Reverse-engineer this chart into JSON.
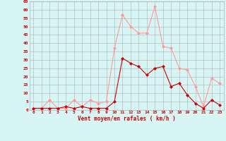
{
  "hours": [
    0,
    1,
    2,
    3,
    4,
    5,
    6,
    7,
    8,
    9,
    10,
    11,
    12,
    13,
    14,
    15,
    16,
    17,
    18,
    19,
    20,
    21,
    22,
    23
  ],
  "vent_moyen": [
    1,
    1,
    1,
    1,
    2,
    1,
    2,
    1,
    1,
    1,
    5,
    31,
    28,
    26,
    21,
    25,
    26,
    14,
    16,
    9,
    4,
    1,
    6,
    3
  ],
  "rafales": [
    1,
    1,
    6,
    1,
    1,
    6,
    2,
    6,
    4,
    5,
    37,
    57,
    50,
    46,
    46,
    62,
    38,
    37,
    25,
    24,
    14,
    2,
    19,
    16
  ],
  "color_moyen": "#cc0000",
  "color_rafales": "#ff9999",
  "bg_color": "#d8f5f5",
  "grid_color": "#b0b0b0",
  "xlabel": "Vent moyen/en rafales ( km/h )",
  "xlabel_color": "#cc0000",
  "ylim": [
    0,
    65
  ],
  "yticks": [
    0,
    5,
    10,
    15,
    20,
    25,
    30,
    35,
    40,
    45,
    50,
    55,
    60,
    65
  ]
}
